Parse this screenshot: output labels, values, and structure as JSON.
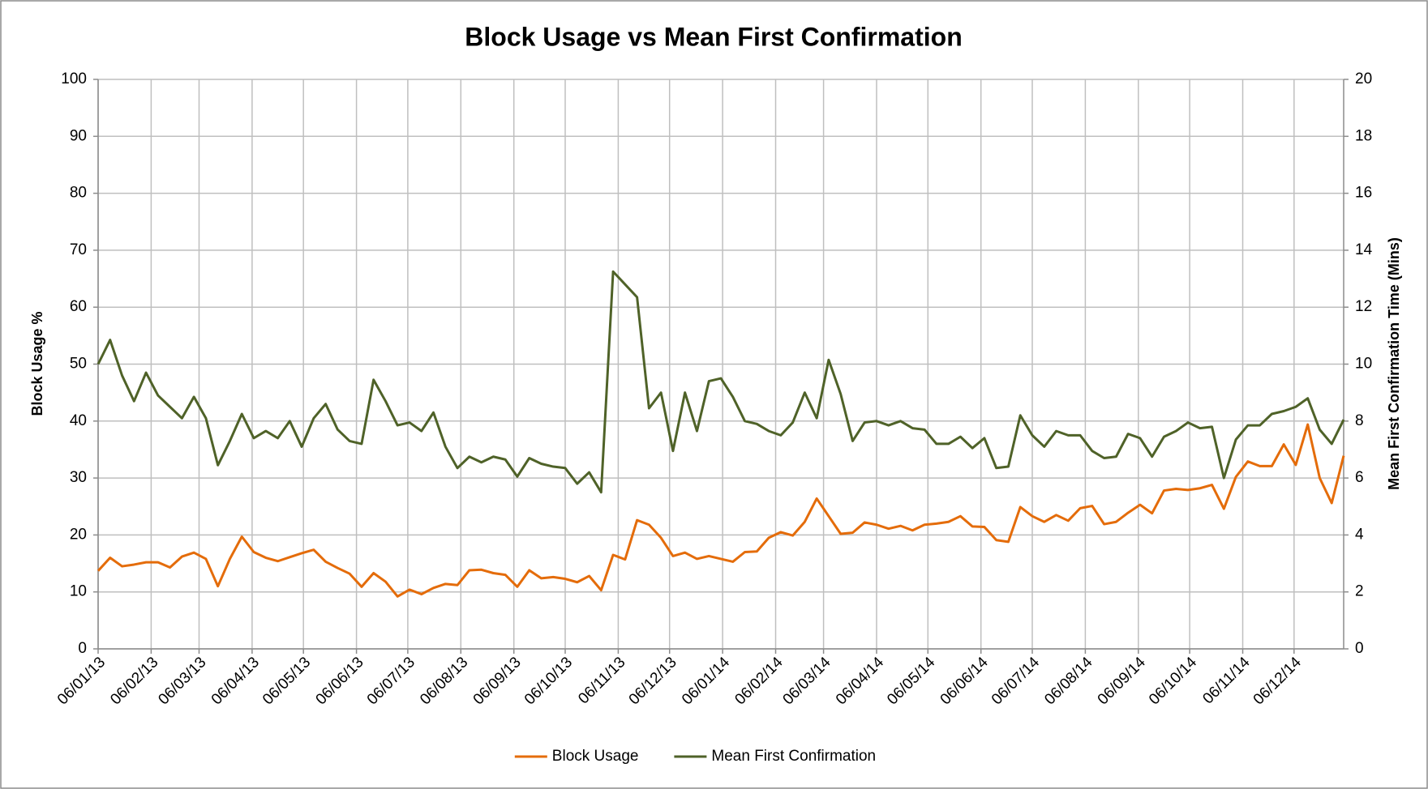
{
  "chart_data": {
    "type": "line",
    "title": "Block Usage vs Mean First Confirmation",
    "y_label": "Block Usage %",
    "y2_label": "Mean First Confirmation Time (Mins)",
    "x": [
      "06/01/13",
      "13/01/13",
      "20/01/13",
      "27/01/13",
      "03/02/13",
      "10/02/13",
      "17/02/13",
      "24/02/13",
      "03/03/13",
      "10/03/13",
      "17/03/13",
      "24/03/13",
      "31/03/13",
      "07/04/13",
      "14/04/13",
      "21/04/13",
      "28/04/13",
      "05/05/13",
      "12/05/13",
      "19/05/13",
      "26/05/13",
      "02/06/13",
      "09/06/13",
      "16/06/13",
      "23/06/13",
      "30/06/13",
      "07/07/13",
      "14/07/13",
      "21/07/13",
      "28/07/13",
      "04/08/13",
      "11/08/13",
      "18/08/13",
      "25/08/13",
      "01/09/13",
      "08/09/13",
      "15/09/13",
      "22/09/13",
      "29/09/13",
      "06/10/13",
      "13/10/13",
      "20/10/13",
      "27/10/13",
      "03/11/13",
      "10/11/13",
      "17/11/13",
      "24/11/13",
      "01/12/13",
      "08/12/13",
      "15/12/13",
      "22/12/13",
      "29/12/13",
      "05/01/14",
      "12/01/14",
      "19/01/14",
      "26/01/14",
      "02/02/14",
      "09/02/14",
      "16/02/14",
      "23/02/14",
      "02/03/14",
      "09/03/14",
      "16/03/14",
      "23/03/14",
      "30/03/14",
      "06/04/14",
      "13/04/14",
      "20/04/14",
      "27/04/14",
      "04/05/14",
      "11/05/14",
      "18/05/14",
      "25/05/14",
      "01/06/14",
      "08/06/14",
      "15/06/14",
      "22/06/14",
      "29/06/14",
      "06/07/14",
      "13/07/14",
      "20/07/14",
      "27/07/14",
      "03/08/14",
      "10/08/14",
      "17/08/14",
      "24/08/14",
      "31/08/14",
      "07/09/14",
      "14/09/14",
      "21/09/14",
      "28/09/14",
      "05/10/14",
      "12/10/14",
      "19/10/14",
      "26/10/14",
      "02/11/14",
      "09/11/14",
      "16/11/14",
      "23/11/14",
      "30/11/14",
      "07/12/14",
      "14/12/14",
      "21/12/14",
      "28/12/14",
      "04/01/15"
    ],
    "xlim": [
      "06/01/13",
      "04/01/15"
    ],
    "xticks": [
      "06/01/13",
      "06/02/13",
      "06/03/13",
      "06/04/13",
      "06/05/13",
      "06/06/13",
      "06/07/13",
      "06/08/13",
      "06/09/13",
      "06/10/13",
      "06/11/13",
      "06/12/13",
      "06/01/14",
      "06/02/14",
      "06/03/14",
      "06/04/14",
      "06/05/14",
      "06/06/14",
      "06/07/14",
      "06/08/14",
      "06/09/14",
      "06/10/14",
      "06/11/14",
      "06/12/14"
    ],
    "ylim": [
      0,
      100
    ],
    "yticks": [
      0,
      10,
      20,
      30,
      40,
      50,
      60,
      70,
      80,
      90,
      100
    ],
    "y2lim": [
      0,
      20
    ],
    "y2ticks": [
      0,
      2,
      4,
      6,
      8,
      10,
      12,
      14,
      16,
      18,
      20
    ],
    "grid": true,
    "legend": "bottom",
    "series": [
      {
        "name": "Block Usage",
        "color": "#e46c0a",
        "values": [
          13.7,
          16.0,
          14.5,
          14.8,
          15.2,
          15.2,
          14.3,
          16.2,
          16.9,
          15.8,
          11.0,
          15.8,
          19.7,
          17.0,
          16.0,
          15.4,
          16.1,
          16.8,
          17.4,
          15.3,
          14.2,
          13.2,
          10.9,
          13.3,
          11.8,
          9.2,
          10.4,
          9.6,
          10.7,
          11.4,
          11.2,
          13.8,
          13.9,
          13.3,
          13.0,
          10.9,
          13.8,
          12.4,
          12.6,
          12.3,
          11.7,
          12.8,
          10.3,
          16.5,
          15.7,
          22.6,
          21.8,
          19.5,
          16.3,
          16.9,
          15.8,
          16.3,
          15.8,
          15.3,
          17.0,
          17.1,
          19.5,
          20.5,
          19.9,
          22.3,
          26.4,
          23.3,
          20.2,
          20.4,
          22.2,
          21.8,
          21.1,
          21.6,
          20.8,
          21.8,
          22.0,
          22.3,
          23.3,
          21.5,
          21.4,
          19.1,
          18.8,
          24.9,
          23.3,
          22.3,
          23.5,
          22.5,
          24.7,
          25.1,
          21.9,
          22.3,
          23.9,
          25.3,
          23.8,
          27.8,
          28.1,
          27.9,
          28.2,
          28.8,
          24.6,
          30.2,
          32.9,
          32.1,
          32.1,
          35.9,
          32.3,
          39.4,
          30.0,
          25.6,
          33.9
        ]
      },
      {
        "name": "Mean First Confirmation",
        "color": "#4f6228",
        "axis": "y2",
        "values": [
          10.0,
          10.85,
          9.6,
          8.7,
          9.7,
          8.9,
          8.5,
          8.1,
          8.85,
          8.1,
          6.45,
          7.3,
          8.25,
          7.4,
          7.65,
          7.4,
          8.0,
          7.1,
          8.1,
          8.6,
          7.7,
          7.3,
          7.2,
          9.45,
          8.7,
          7.85,
          7.95,
          7.65,
          8.3,
          7.1,
          6.35,
          6.75,
          6.55,
          6.75,
          6.65,
          6.05,
          6.7,
          6.5,
          6.4,
          6.35,
          5.8,
          6.2,
          5.5,
          13.25,
          12.8,
          12.35,
          8.45,
          9.0,
          6.95,
          9.0,
          7.65,
          9.4,
          9.5,
          8.85,
          8.0,
          7.9,
          7.65,
          7.5,
          7.95,
          9.0,
          8.1,
          10.15,
          8.95,
          7.3,
          7.95,
          8.0,
          7.85,
          8.0,
          7.75,
          7.7,
          7.2,
          7.2,
          7.45,
          7.05,
          7.4,
          6.35,
          6.4,
          8.2,
          7.5,
          7.1,
          7.65,
          7.5,
          7.5,
          6.95,
          6.7,
          6.75,
          7.55,
          7.4,
          6.75,
          7.45,
          7.65,
          7.95,
          7.75,
          7.8,
          6.0,
          7.35,
          7.85,
          7.85,
          8.25,
          8.35,
          8.5,
          8.8,
          7.7,
          7.2,
          8.05
        ]
      }
    ]
  }
}
